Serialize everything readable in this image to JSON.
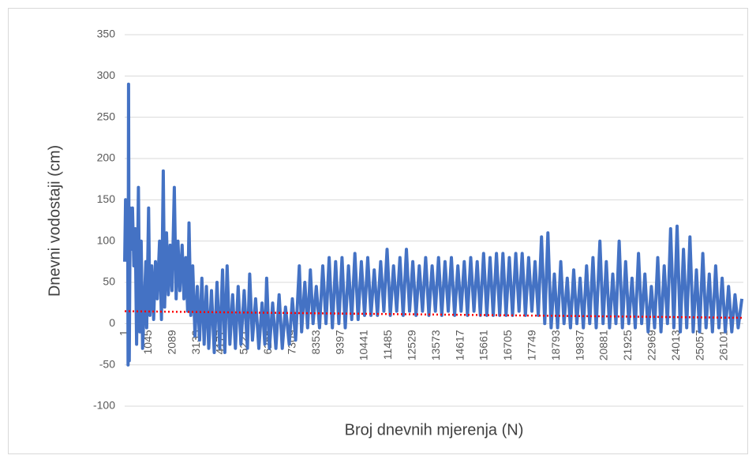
{
  "chart_data": {
    "type": "line",
    "y_label": "Dnevni vodostaji (cm)",
    "x_label": "Broj dnevnih mjerenja (N)",
    "xlim": [
      1,
      26925
    ],
    "xticks": [
      1,
      1045,
      2089,
      3133,
      4177,
      5221,
      6265,
      7309,
      8353,
      9397,
      10441,
      11485,
      12529,
      13573,
      14617,
      15661,
      16705,
      17749,
      18793,
      19837,
      20881,
      21925,
      22969,
      24013,
      25057,
      26101
    ],
    "ylim": [
      -100,
      350
    ],
    "yticks": [
      -100,
      -50,
      0,
      50,
      100,
      150,
      200,
      250,
      300,
      350
    ],
    "grid": true,
    "x": [
      1,
      40,
      90,
      130,
      150,
      170,
      200,
      240,
      290,
      340,
      400,
      460,
      520,
      600,
      660,
      720,
      780,
      850,
      920,
      960,
      1040,
      1100,
      1180,
      1260,
      1340,
      1420,
      1520,
      1600,
      1680,
      1740,
      1820,
      1900,
      1980,
      2060,
      2160,
      2240,
      2320,
      2400,
      2500,
      2580,
      2660,
      2740,
      2800,
      2880,
      2960,
      3060,
      3160,
      3260,
      3360,
      3460,
      3560,
      3660,
      3780,
      3900,
      4020,
      4140,
      4260,
      4360,
      4460,
      4580,
      4700,
      4820,
      4940,
      5060,
      5200,
      5340,
      5440,
      5560,
      5700,
      5840,
      5980,
      6100,
      6180,
      6300,
      6440,
      6580,
      6720,
      6860,
      7000,
      7160,
      7300,
      7440,
      7600,
      7700,
      7840,
      7960,
      8080,
      8200,
      8340,
      8480,
      8620,
      8760,
      8900,
      9040,
      9180,
      9320,
      9460,
      9600,
      9740,
      9880,
      10020,
      10160,
      10300,
      10440,
      10580,
      10720,
      10860,
      11000,
      11140,
      11280,
      11420,
      11560,
      11700,
      11840,
      11980,
      12120,
      12260,
      12400,
      12540,
      12680,
      12820,
      12960,
      13100,
      13240,
      13380,
      13520,
      13660,
      13800,
      13940,
      14080,
      14220,
      14360,
      14500,
      14640,
      14780,
      14920,
      15060,
      15200,
      15340,
      15480,
      15620,
      15760,
      15900,
      16040,
      16180,
      16320,
      16460,
      16600,
      16740,
      16880,
      17020,
      17160,
      17300,
      17440,
      17580,
      17720,
      17860,
      18000,
      18140,
      18280,
      18420,
      18560,
      18700,
      18840,
      18980,
      19120,
      19260,
      19400,
      19540,
      19680,
      19820,
      19960,
      20100,
      20240,
      20380,
      20520,
      20680,
      20820,
      20960,
      21100,
      21240,
      21380,
      21520,
      21660,
      21800,
      21940,
      22080,
      22220,
      22360,
      22500,
      22640,
      22780,
      22920,
      23060,
      23200,
      23340,
      23480,
      23620,
      23760,
      23900,
      24040,
      24180,
      24320,
      24460,
      24600,
      24740,
      24880,
      25020,
      25160,
      25300,
      25440,
      25580,
      25720,
      25860,
      26000,
      26140,
      26280,
      26420,
      26560,
      26700,
      26860
    ],
    "series": [
      {
        "color": "#4472c4",
        "values": [
          75,
          150,
          95,
          140,
          -50,
          290,
          -45,
          140,
          90,
          140,
          70,
          115,
          -25,
          165,
          -10,
          100,
          -30,
          20,
          75,
          -5,
          140,
          10,
          70,
          5,
          75,
          30,
          100,
          5,
          185,
          20,
          110,
          35,
          95,
          40,
          165,
          30,
          100,
          40,
          95,
          30,
          80,
          15,
          122,
          10,
          70,
          -15,
          45,
          -20,
          55,
          -25,
          45,
          -30,
          40,
          -35,
          50,
          -30,
          65,
          -35,
          70,
          -25,
          35,
          -30,
          45,
          -25,
          40,
          -30,
          60,
          -20,
          30,
          -30,
          25,
          -25,
          55,
          -30,
          25,
          -30,
          35,
          -30,
          20,
          -25,
          30,
          -20,
          70,
          -10,
          50,
          -5,
          65,
          0,
          45,
          -5,
          70,
          0,
          80,
          -5,
          75,
          0,
          80,
          -5,
          70,
          5,
          85,
          5,
          75,
          10,
          80,
          10,
          65,
          10,
          75,
          15,
          90,
          10,
          70,
          15,
          80,
          10,
          90,
          15,
          75,
          10,
          70,
          15,
          80,
          10,
          70,
          15,
          80,
          10,
          75,
          15,
          80,
          10,
          70,
          15,
          75,
          10,
          80,
          15,
          75,
          10,
          85,
          10,
          80,
          10,
          85,
          10,
          85,
          10,
          80,
          10,
          85,
          15,
          85,
          10,
          80,
          15,
          75,
          10,
          105,
          0,
          110,
          -5,
          60,
          -5,
          75,
          0,
          55,
          -5,
          65,
          0,
          55,
          -5,
          70,
          0,
          80,
          -5,
          100,
          0,
          75,
          -5,
          60,
          0,
          100,
          -5,
          75,
          0,
          55,
          -5,
          85,
          0,
          60,
          -10,
          45,
          -5,
          80,
          -10,
          70,
          0,
          115,
          -5,
          118,
          -10,
          90,
          -5,
          105,
          -10,
          65,
          -10,
          85,
          -5,
          60,
          -10,
          70,
          -5,
          55,
          -10,
          45,
          -10,
          35,
          -5,
          30
        ]
      }
    ],
    "trend": {
      "color": "#ff0000",
      "x": [
        1,
        26925
      ],
      "values": [
        15,
        7
      ]
    }
  }
}
